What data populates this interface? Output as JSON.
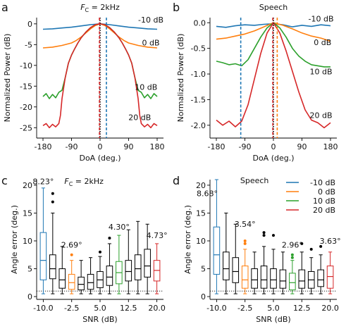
{
  "colors": {
    "blue": "#1f77b4",
    "orange": "#ff7f0e",
    "green": "#2ca02c",
    "red": "#d62728",
    "black": "#000000"
  },
  "chart_data": [
    {
      "panel": "a",
      "type": "line",
      "title": "F_C = 2kHz",
      "title_main": "F",
      "title_sub": "C",
      "title_rest": " = 2kHz",
      "xlabel": "DoA (deg.)",
      "ylabel": "Normalized Power (dB)",
      "xlim": [
        -200,
        200
      ],
      "ylim": [
        -27.5,
        1.5
      ],
      "xticks": [
        -180,
        -90,
        0,
        90,
        180
      ],
      "yticks": [
        0,
        -5,
        -10,
        -15,
        -20,
        -25
      ],
      "series": [
        {
          "name": "-10 dB",
          "color": "blue",
          "x": [
            -180,
            -150,
            -120,
            -90,
            -60,
            -30,
            0,
            30,
            60,
            90,
            120,
            150,
            180
          ],
          "y": [
            -1.3,
            -1.2,
            -1.0,
            -0.8,
            -0.5,
            -0.2,
            0,
            -0.2,
            -0.5,
            -0.8,
            -1.0,
            -1.2,
            -1.3
          ]
        },
        {
          "name": "0 dB",
          "color": "orange",
          "x": [
            -180,
            -150,
            -120,
            -90,
            -75,
            -60,
            -45,
            -30,
            -15,
            0,
            15,
            30,
            45,
            60,
            75,
            90,
            120,
            150,
            180
          ],
          "y": [
            -5.8,
            -5.6,
            -5.2,
            -4.6,
            -4.0,
            -3.2,
            -2.2,
            -1.2,
            -0.4,
            0,
            -0.4,
            -1.2,
            -2.2,
            -3.2,
            -4.0,
            -4.6,
            -5.2,
            -5.6,
            -5.8
          ]
        },
        {
          "name": "10 dB",
          "color": "green",
          "x": [
            -180,
            -170,
            -160,
            -150,
            -140,
            -130,
            -120,
            -110,
            -100,
            -90,
            -80,
            -70,
            -60,
            -45,
            -30,
            -15,
            0,
            15,
            30,
            45,
            60,
            70,
            80,
            90,
            100,
            110,
            120,
            130,
            140,
            150,
            160,
            170,
            180
          ],
          "y": [
            -17.5,
            -16.8,
            -18,
            -17,
            -17.8,
            -16.5,
            -16,
            -13,
            -9.5,
            -7.5,
            -6.0,
            -4.6,
            -3.4,
            -2.0,
            -0.9,
            -0.2,
            0,
            -0.2,
            -0.9,
            -2.0,
            -3.4,
            -4.6,
            -6.0,
            -7.5,
            -9.5,
            -13,
            -16,
            -16.5,
            -17.8,
            -17,
            -18,
            -16.8,
            -17.5
          ]
        },
        {
          "name": "20 dB",
          "color": "red",
          "x": [
            -180,
            -170,
            -160,
            -150,
            -140,
            -130,
            -125,
            -120,
            -110,
            -100,
            -90,
            -80,
            -70,
            -60,
            -45,
            -30,
            -15,
            0,
            15,
            30,
            45,
            60,
            70,
            80,
            90,
            100,
            110,
            120,
            125,
            130,
            140,
            150,
            160,
            170,
            180
          ],
          "y": [
            -24.5,
            -24,
            -25,
            -24.2,
            -24.8,
            -24,
            -22,
            -18,
            -13,
            -9.5,
            -7.5,
            -6.0,
            -4.6,
            -3.4,
            -2.0,
            -0.9,
            -0.2,
            0,
            -0.2,
            -0.9,
            -2.0,
            -3.4,
            -4.6,
            -6.0,
            -7.5,
            -9.5,
            -13,
            -18,
            -22,
            -24,
            -24.8,
            -24.2,
            -25,
            -24,
            -24.5
          ]
        }
      ],
      "vlines": [
        {
          "x": 0,
          "color": "black",
          "style": "dotted"
        },
        {
          "x": -2,
          "color": "red",
          "style": "dashed"
        },
        {
          "x": 20,
          "color": "blue",
          "style": "dashed"
        }
      ],
      "annotations": [
        {
          "text": "-10 dB",
          "x": 160,
          "y": 1.0,
          "color": "black"
        },
        {
          "text": "0 dB",
          "x": 160,
          "y": -4.5,
          "color": "black"
        },
        {
          "text": "10 dB",
          "x": 145,
          "y": -15.2,
          "color": "black"
        },
        {
          "text": "20 dB",
          "x": 125,
          "y": -22.5,
          "color": "black"
        }
      ]
    },
    {
      "panel": "b",
      "type": "line",
      "title": "Speech",
      "xlabel": "DoA (deg.)",
      "ylabel": "Normalized Power (dB)",
      "xlim": [
        -200,
        200
      ],
      "ylim": [
        -2.25,
        0.1
      ],
      "xticks": [
        -180,
        -90,
        0,
        90,
        180
      ],
      "yticks": [
        0.0,
        -0.5,
        -1.0,
        -1.5,
        -2.0
      ],
      "series": [
        {
          "name": "-10 dB",
          "color": "blue",
          "x": [
            -180,
            -150,
            -120,
            -90,
            -60,
            -30,
            0,
            30,
            60,
            90,
            120,
            150,
            180
          ],
          "y": [
            -0.07,
            -0.09,
            -0.06,
            -0.04,
            -0.05,
            -0.03,
            -0.02,
            -0.04,
            -0.08,
            -0.05,
            -0.07,
            -0.04,
            -0.06
          ]
        },
        {
          "name": "0 dB",
          "color": "orange",
          "x": [
            -180,
            -150,
            -120,
            -90,
            -60,
            -30,
            0,
            30,
            60,
            90,
            120,
            150,
            180
          ],
          "y": [
            -0.32,
            -0.3,
            -0.26,
            -0.22,
            -0.16,
            -0.08,
            0,
            -0.05,
            -0.12,
            -0.2,
            -0.26,
            -0.3,
            -0.36
          ]
        },
        {
          "name": "10 dB",
          "color": "green",
          "x": [
            -180,
            -160,
            -140,
            -120,
            -100,
            -80,
            -60,
            -40,
            -20,
            0,
            20,
            40,
            60,
            80,
            100,
            120,
            140,
            160,
            180
          ],
          "y": [
            -0.75,
            -0.78,
            -0.82,
            -0.8,
            -0.84,
            -0.72,
            -0.5,
            -0.28,
            -0.1,
            0,
            -0.1,
            -0.28,
            -0.5,
            -0.65,
            -0.75,
            -0.82,
            -0.84,
            -0.86,
            -0.86
          ]
        },
        {
          "name": "20 dB",
          "color": "red",
          "x": [
            -180,
            -160,
            -140,
            -120,
            -100,
            -80,
            -60,
            -40,
            -20,
            0,
            20,
            40,
            60,
            80,
            100,
            120,
            140,
            160,
            180
          ],
          "y": [
            -1.9,
            -2.0,
            -1.92,
            -2.03,
            -1.92,
            -1.6,
            -1.1,
            -0.6,
            -0.2,
            0,
            -0.2,
            -0.55,
            -0.95,
            -1.35,
            -1.7,
            -1.9,
            -1.95,
            -2.05,
            -1.95
          ]
        }
      ],
      "vlines": [
        {
          "x": 0,
          "color": "black",
          "style": "dotted"
        },
        {
          "x": -2,
          "color": "red",
          "style": "dashed"
        },
        {
          "x": 12,
          "color": "orange",
          "style": "dashed"
        },
        {
          "x": -103,
          "color": "blue",
          "style": "dashed"
        }
      ],
      "annotations": [
        {
          "text": "-10 dB",
          "x": 150,
          "y": 0.08,
          "color": "black"
        },
        {
          "text": "0 dB",
          "x": 155,
          "y": -0.38,
          "color": "black"
        },
        {
          "text": "10 dB",
          "x": 150,
          "y": -0.95,
          "color": "black"
        },
        {
          "text": "20 dB",
          "x": 150,
          "y": -1.8,
          "color": "black"
        }
      ]
    },
    {
      "panel": "c",
      "type": "box",
      "title": "F_C = 2kHz",
      "title_main": "F",
      "title_sub": "C",
      "title_rest": " = 2kHz",
      "xlabel": "SNR (dB)",
      "ylabel": "Angle error (deg.)",
      "ylim": [
        -0.5,
        21
      ],
      "yticks": [
        0,
        5,
        10,
        15,
        20
      ],
      "categories": [
        -10.0,
        -7.5,
        -5.0,
        -2.5,
        0.0,
        2.5,
        5.0,
        7.5,
        10.0,
        12.5,
        15.0,
        17.5,
        20.0
      ],
      "xtick_labels": [
        "-10.0",
        "-2.5",
        "5.0",
        "12.5",
        "20.0"
      ],
      "xtick_positions": [
        -10.0,
        -2.5,
        5.0,
        12.5,
        20.0
      ],
      "reference_line": 1,
      "boxes": [
        {
          "x": -10.0,
          "color": "blue",
          "whisker_low": 0.5,
          "q1": 3.0,
          "median": 6.5,
          "q3": 11.5,
          "whisker_high": 19.5,
          "outliers": []
        },
        {
          "x": -7.5,
          "color": "black",
          "whisker_low": 0.5,
          "q1": 3.2,
          "median": 5.0,
          "q3": 7.5,
          "whisker_high": 15.0,
          "outliers": [
            17.0,
            18.5
          ]
        },
        {
          "x": -5.0,
          "color": "black",
          "whisker_low": 0.5,
          "q1": 1.5,
          "median": 3.0,
          "q3": 5.0,
          "whisker_high": 9.0,
          "outliers": []
        },
        {
          "x": -2.5,
          "color": "orange",
          "whisker_low": 0.5,
          "q1": 1.3,
          "median": 2.5,
          "q3": 4.0,
          "whisker_high": 6.5,
          "outliers": [
            7.5
          ]
        },
        {
          "x": 0.0,
          "color": "black",
          "whisker_low": 0.5,
          "q1": 1.2,
          "median": 2.2,
          "q3": 3.5,
          "whisker_high": 6.5,
          "outliers": []
        },
        {
          "x": 2.5,
          "color": "black",
          "whisker_low": 0.5,
          "q1": 1.3,
          "median": 2.5,
          "q3": 4.0,
          "whisker_high": 7.0,
          "outliers": []
        },
        {
          "x": 5.0,
          "color": "black",
          "whisker_low": 0.5,
          "q1": 1.6,
          "median": 3.0,
          "q3": 4.5,
          "whisker_high": 7.2,
          "outliers": [
            8.0
          ]
        },
        {
          "x": 7.5,
          "color": "black",
          "whisker_low": 0.5,
          "q1": 2.0,
          "median": 3.5,
          "q3": 5.5,
          "whisker_high": 9.5,
          "outliers": [
            10.5
          ]
        },
        {
          "x": 10.0,
          "color": "green",
          "whisker_low": 0.5,
          "q1": 2.3,
          "median": 4.3,
          "q3": 6.3,
          "whisker_high": 11.0,
          "outliers": []
        },
        {
          "x": 12.5,
          "color": "black",
          "whisker_low": 0.5,
          "q1": 2.8,
          "median": 4.5,
          "q3": 6.5,
          "whisker_high": 12.0,
          "outliers": []
        },
        {
          "x": 15.0,
          "color": "black",
          "whisker_low": 0.5,
          "q1": 3.0,
          "median": 5.0,
          "q3": 7.5,
          "whisker_high": 13.5,
          "outliers": []
        },
        {
          "x": 17.5,
          "color": "black",
          "whisker_low": 0.5,
          "q1": 3.5,
          "median": 5.5,
          "q3": 8.5,
          "whisker_high": 13.0,
          "outliers": []
        },
        {
          "x": 20.0,
          "color": "red",
          "whisker_low": 0.5,
          "q1": 2.8,
          "median": 4.7,
          "q3": 6.5,
          "whisker_high": 9.5,
          "outliers": []
        }
      ],
      "annotations": [
        {
          "text": "8.23°",
          "x": -10.0,
          "y": 20.2,
          "color": "blue"
        },
        {
          "text": "2.69°",
          "x": -2.5,
          "y": 8.8,
          "color": "orange"
        },
        {
          "text": "4.30°",
          "x": 10.0,
          "y": 12.0,
          "color": "green"
        },
        {
          "text": "4.73°",
          "x": 20.0,
          "y": 10.5,
          "color": "red"
        }
      ]
    },
    {
      "panel": "d",
      "type": "box",
      "title": "Speech",
      "xlabel": "SNR (dB)",
      "ylabel": "Angle error (deg.)",
      "ylim": [
        -0.5,
        21
      ],
      "yticks": [
        0,
        5,
        10,
        15,
        20
      ],
      "categories": [
        -10.0,
        -7.5,
        -5.0,
        -2.5,
        0.0,
        2.5,
        5.0,
        7.5,
        10.0,
        12.5,
        15.0,
        17.5,
        20.0
      ],
      "xtick_labels": [
        "-10.0",
        "-2.5",
        "5.0",
        "12.5",
        "20.0"
      ],
      "xtick_positions": [
        -10.0,
        -2.5,
        5.0,
        12.5,
        20.0
      ],
      "reference_line": 1,
      "legend": {
        "position": "top-right",
        "entries": [
          {
            "label": "-10 dB",
            "color": "blue"
          },
          {
            "label": "0 dB",
            "color": "orange"
          },
          {
            "label": "10 dB",
            "color": "green"
          },
          {
            "label": "20 dB",
            "color": "red"
          }
        ]
      },
      "boxes": [
        {
          "x": -10.0,
          "color": "blue",
          "whisker_low": 0.5,
          "q1": 4.0,
          "median": 7.5,
          "q3": 12.5,
          "whisker_high": 21.0,
          "outliers": []
        },
        {
          "x": -7.5,
          "color": "black",
          "whisker_low": 0.5,
          "q1": 3.0,
          "median": 5.0,
          "q3": 8.0,
          "whisker_high": 15.0,
          "outliers": []
        },
        {
          "x": -5.0,
          "color": "black",
          "whisker_low": 0.5,
          "q1": 2.5,
          "median": 4.5,
          "q3": 7.0,
          "whisker_high": 13.0,
          "outliers": []
        },
        {
          "x": -2.5,
          "color": "orange",
          "whisker_low": 0.5,
          "q1": 1.5,
          "median": 3.0,
          "q3": 5.5,
          "whisker_high": 8.5,
          "outliers": [
            9.5,
            10.0
          ]
        },
        {
          "x": 0.0,
          "color": "black",
          "whisker_low": 0.5,
          "q1": 1.5,
          "median": 3.0,
          "q3": 5.0,
          "whisker_high": 8.0,
          "outliers": []
        },
        {
          "x": 2.5,
          "color": "black",
          "whisker_low": 0.5,
          "q1": 1.5,
          "median": 3.0,
          "q3": 5.5,
          "whisker_high": 9.0,
          "outliers": [
            11.0,
            11.5
          ]
        },
        {
          "x": 5.0,
          "color": "black",
          "whisker_low": 0.5,
          "q1": 1.5,
          "median": 3.0,
          "q3": 5.0,
          "whisker_high": 8.5,
          "outliers": [
            11.0
          ]
        },
        {
          "x": 7.5,
          "color": "black",
          "whisker_low": 0.5,
          "q1": 1.5,
          "median": 2.8,
          "q3": 4.8,
          "whisker_high": 8.0,
          "outliers": []
        },
        {
          "x": 10.0,
          "color": "green",
          "whisker_low": 0.5,
          "q1": 1.2,
          "median": 2.5,
          "q3": 4.2,
          "whisker_high": 6.5,
          "outliers": [
            7.0,
            7.5
          ]
        },
        {
          "x": 12.5,
          "color": "black",
          "whisker_low": 0.5,
          "q1": 1.5,
          "median": 2.8,
          "q3": 4.8,
          "whisker_high": 8.0,
          "outliers": [
            9.5
          ]
        },
        {
          "x": 15.0,
          "color": "black",
          "whisker_low": 0.5,
          "q1": 1.5,
          "median": 3.0,
          "q3": 4.5,
          "whisker_high": 7.0,
          "outliers": [
            8.5
          ]
        },
        {
          "x": 17.5,
          "color": "black",
          "whisker_low": 0.5,
          "q1": 1.8,
          "median": 3.0,
          "q3": 4.8,
          "whisker_high": 7.5,
          "outliers": [
            9.0
          ]
        },
        {
          "x": 20.0,
          "color": "red",
          "whisker_low": 0.5,
          "q1": 1.5,
          "median": 3.6,
          "q3": 5.5,
          "whisker_high": 8.0,
          "outliers": []
        }
      ],
      "annotations": [
        {
          "text": "8.68°",
          "x": -7.0,
          "y": 18.0,
          "color": "blue"
        },
        {
          "text": "3.54°",
          "x": -2.5,
          "y": 12.5,
          "color": "orange"
        },
        {
          "text": "2.96°",
          "x": 10.0,
          "y": 8.8,
          "color": "green"
        },
        {
          "text": "3.63°",
          "x": 20.0,
          "y": 9.5,
          "color": "red"
        }
      ]
    }
  ],
  "panel_labels": [
    "a",
    "b",
    "c",
    "d"
  ]
}
